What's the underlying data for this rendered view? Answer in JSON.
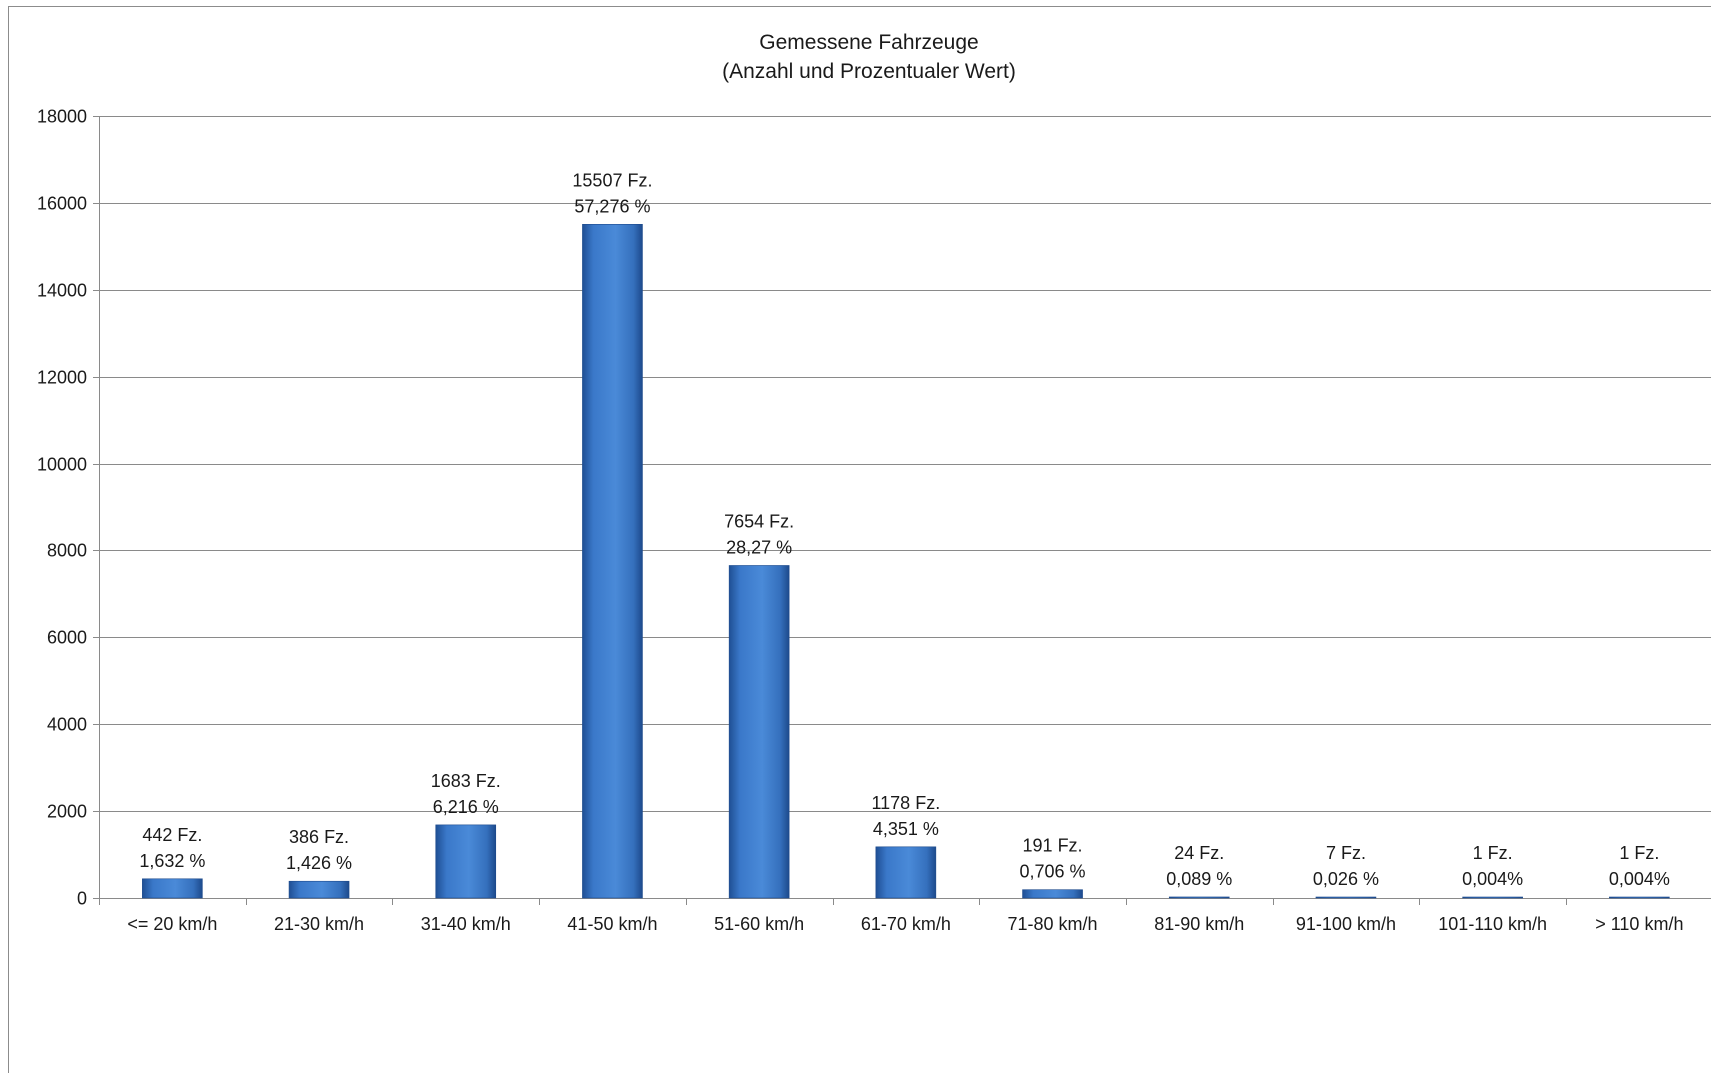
{
  "chart_data": {
    "type": "bar",
    "title": "Gemessene Fahrzeuge",
    "subtitle": "(Anzahl und Prozentualer Wert)",
    "xlabel": "",
    "ylabel": "",
    "ylim": [
      0,
      18000
    ],
    "yticks": [
      0,
      2000,
      4000,
      6000,
      8000,
      10000,
      12000,
      14000,
      16000,
      18000
    ],
    "grid": true,
    "legend": "none",
    "bar_color": "#3a78c9",
    "categories": [
      "<= 20 km/h",
      "21-30 km/h",
      "31-40 km/h",
      "41-50 km/h",
      "51-60 km/h",
      "61-70 km/h",
      "71-80 km/h",
      "81-90 km/h",
      "91-100 km/h",
      "101-110 km/h",
      "> 110 km/h"
    ],
    "values": [
      442,
      386,
      1683,
      15507,
      7654,
      1178,
      191,
      24,
      7,
      1,
      1
    ],
    "data_labels": [
      [
        "442 Fz.",
        "1,632 %"
      ],
      [
        "386 Fz.",
        "1,426 %"
      ],
      [
        "1683 Fz.",
        "6,216 %"
      ],
      [
        "15507 Fz.",
        "57,276 %"
      ],
      [
        "7654 Fz.",
        "28,27 %"
      ],
      [
        "1178 Fz.",
        "4,351 %"
      ],
      [
        "191 Fz.",
        "0,706 %"
      ],
      [
        "24 Fz.",
        "0,089 %"
      ],
      [
        "7 Fz.",
        "0,026 %"
      ],
      [
        "1 Fz.",
        "0,004%"
      ],
      [
        "1 Fz.",
        "0,004%"
      ]
    ]
  }
}
